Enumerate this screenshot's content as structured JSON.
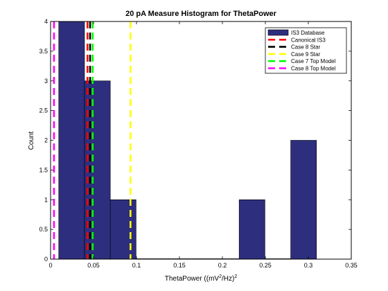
{
  "chart_data": {
    "type": "bar",
    "title": "20 pA Measure Histogram for ThetaPower",
    "xlabel": "ThetaPower ((mV^2/Hz)^2)",
    "xlabel_parts": {
      "prefix": "ThetaPower ((mV",
      "sup1": "2",
      "middle": "/Hz)",
      "sup2": "2"
    },
    "ylabel": "Count",
    "xlim": [
      0,
      0.35
    ],
    "ylim": [
      0,
      4
    ],
    "x_ticks": [
      "0",
      "0.05",
      "0.1",
      "0.15",
      "0.2",
      "0.25",
      "0.3",
      "0.35"
    ],
    "y_ticks": [
      "0",
      "0.5",
      "1",
      "1.5",
      "2",
      "2.5",
      "3",
      "3.5",
      "4"
    ],
    "grid": false,
    "legend_position": "top-right",
    "bins": [
      {
        "start": 0.0095,
        "end": 0.0395,
        "count": 4
      },
      {
        "start": 0.0395,
        "end": 0.0695,
        "count": 3
      },
      {
        "start": 0.0695,
        "end": 0.0995,
        "count": 1
      },
      {
        "start": 0.0995,
        "end": 0.1295,
        "count": 0
      },
      {
        "start": 0.1295,
        "end": 0.1595,
        "count": 0
      },
      {
        "start": 0.1595,
        "end": 0.1895,
        "count": 0
      },
      {
        "start": 0.1895,
        "end": 0.2195,
        "count": 0
      },
      {
        "start": 0.2195,
        "end": 0.2495,
        "count": 1
      },
      {
        "start": 0.2495,
        "end": 0.2795,
        "count": 0
      },
      {
        "start": 0.2795,
        "end": 0.3095,
        "count": 2
      }
    ],
    "series": [
      {
        "name": "IS3 Database",
        "kind": "histogram",
        "color": "#2e2e7e"
      },
      {
        "name": "Canonical IS3",
        "kind": "vline",
        "x": 0.043,
        "color": "#ff0000"
      },
      {
        "name": "Case 8 Star",
        "kind": "vline",
        "x": 0.046,
        "color": "#000000"
      },
      {
        "name": "Case 9 Star",
        "kind": "vline",
        "x": 0.093,
        "color": "#ffff00"
      },
      {
        "name": "Case 7 Top Model",
        "kind": "vline",
        "x": 0.049,
        "color": "#00ff00"
      },
      {
        "name": "Case 8 Top Model",
        "kind": "vline",
        "x": 0.004,
        "color": "#ff00ff"
      }
    ],
    "colors": {
      "bar_fill": "#2e2e7e",
      "bar_edge": "#000000",
      "axes": "#000000",
      "background": "#ffffff"
    }
  }
}
